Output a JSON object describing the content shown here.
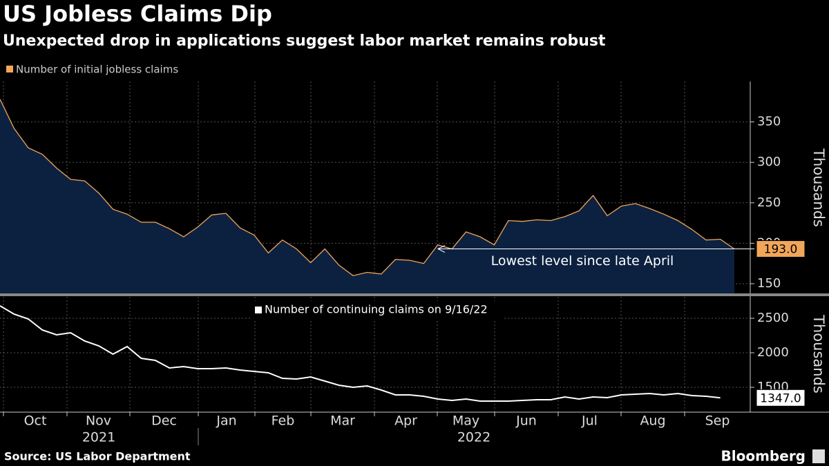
{
  "header": {
    "title": "US Jobless Claims Dip",
    "subtitle": "Unexpected drop in applications suggest labor market remains robust"
  },
  "chart_data": [
    {
      "type": "area",
      "legend": "Number of initial jobless claims",
      "y_label": "Thousands",
      "color": "#f2a65a",
      "fill": "#0c2140",
      "values": [
        378,
        342,
        318,
        310,
        293,
        279,
        277,
        262,
        242,
        236,
        226,
        226,
        218,
        208,
        220,
        235,
        237,
        219,
        210,
        188,
        204,
        193,
        176,
        193,
        173,
        160,
        164,
        162,
        180,
        179,
        175,
        198,
        193,
        214,
        208,
        198,
        228,
        227,
        229,
        228,
        233,
        240,
        259,
        234,
        246,
        249,
        243,
        236,
        228,
        217,
        204,
        205,
        193
      ],
      "last_value_label": "193.0",
      "annotation": "Lowest level since late April",
      "ylim": [
        138,
        400
      ],
      "yticks": [
        150,
        200,
        250,
        300,
        350
      ],
      "grid": true
    },
    {
      "type": "line",
      "legend": "Number of continuing claims on 9/16/22",
      "y_label": "Thousands",
      "color": "#ffffff",
      "values": [
        2680,
        2560,
        2490,
        2330,
        2260,
        2290,
        2170,
        2100,
        1980,
        2090,
        1920,
        1890,
        1780,
        1800,
        1770,
        1770,
        1780,
        1750,
        1730,
        1710,
        1630,
        1620,
        1650,
        1590,
        1530,
        1500,
        1520,
        1460,
        1390,
        1390,
        1370,
        1330,
        1310,
        1330,
        1300,
        1300,
        1300,
        1310,
        1320,
        1320,
        1360,
        1330,
        1360,
        1350,
        1390,
        1400,
        1410,
        1390,
        1410,
        1380,
        1370,
        1347
      ],
      "last_value_label": "1347.0",
      "ylim": [
        1140,
        2810
      ],
      "yticks": [
        1500,
        2000,
        2500
      ],
      "grid": true
    }
  ],
  "x_axis": {
    "months": [
      "Oct",
      "Nov",
      "Dec",
      "Jan",
      "Feb",
      "Mar",
      "Apr",
      "May",
      "Jun",
      "Jul",
      "Aug",
      "Sep"
    ],
    "years": [
      "2021",
      "2022"
    ]
  },
  "footer": {
    "source": "Source: US Labor Department",
    "brand": "Bloomberg"
  }
}
